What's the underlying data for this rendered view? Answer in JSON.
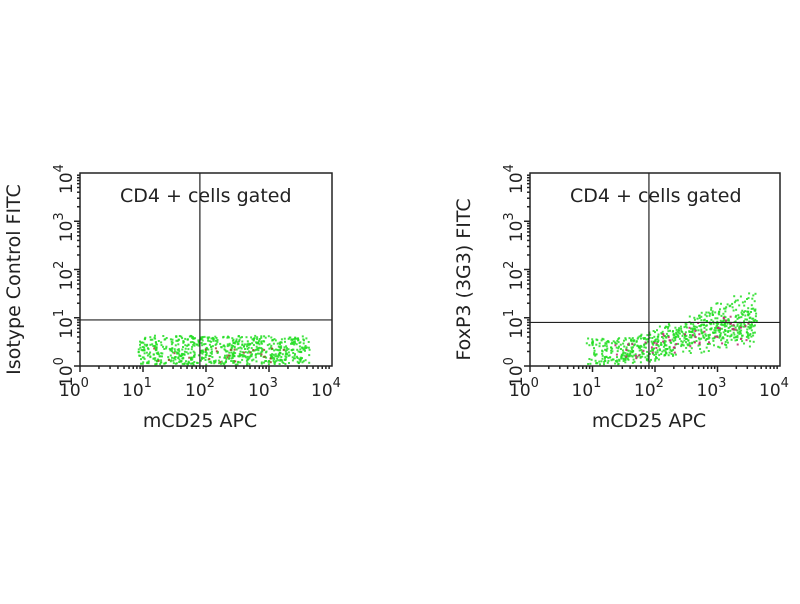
{
  "chart_data": [
    {
      "type": "scatter",
      "title": "CD4 + cells gated",
      "xlabel": "mCD25 APC",
      "ylabel": "Isotype Control FITC",
      "xscale": "log",
      "yscale": "log",
      "xlim": [
        1,
        10000
      ],
      "ylim": [
        1,
        10000
      ],
      "tick_labels": [
        "0",
        "1",
        "2",
        "3",
        "4"
      ],
      "tick_base": "10",
      "quadrant_gate": {
        "x": 80,
        "y": 9
      },
      "clusters": [
        {
          "color": "#22dd22",
          "count": 700,
          "log_x_range": [
            0.9,
            3.6
          ],
          "log_y_range": [
            0.05,
            0.65
          ],
          "slope": 0
        },
        {
          "color": "#9a4a2a",
          "count": 25,
          "log_x_range": [
            1.2,
            3.2
          ],
          "log_y_range": [
            0.1,
            0.4
          ],
          "slope": 0
        }
      ]
    },
    {
      "type": "scatter",
      "title": "CD4 + cells gated",
      "xlabel": "mCD25 APC",
      "ylabel": "FoxP3 (3G3) FITC",
      "xscale": "log",
      "yscale": "log",
      "xlim": [
        1,
        10000
      ],
      "ylim": [
        1,
        10000
      ],
      "tick_labels": [
        "0",
        "1",
        "2",
        "3",
        "4"
      ],
      "tick_base": "10",
      "quadrant_gate": {
        "x": 80,
        "y": 8
      },
      "clusters": [
        {
          "color": "#22dd22",
          "count": 750,
          "log_x_range": [
            0.9,
            3.6
          ],
          "log_y_range": [
            0.05,
            0.6
          ],
          "slope": 0.45
        },
        {
          "color": "#c02070",
          "count": 60,
          "log_x_range": [
            1.1,
            3.5
          ],
          "log_y_range": [
            0.1,
            0.5
          ],
          "slope": 0.4
        }
      ]
    }
  ]
}
